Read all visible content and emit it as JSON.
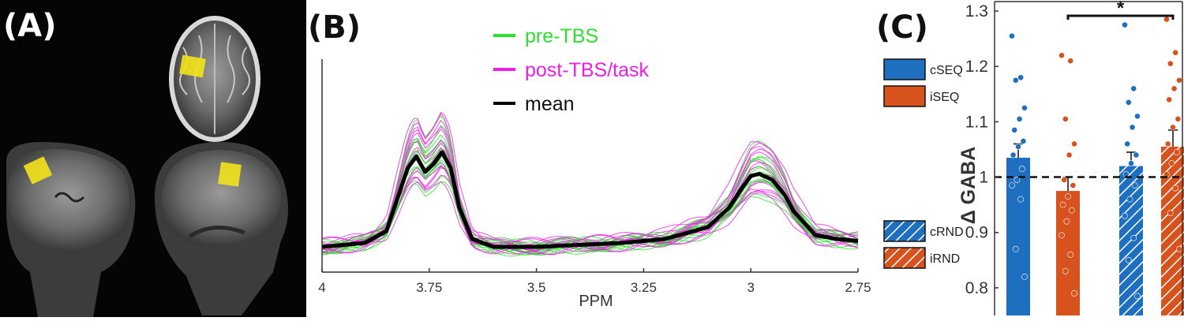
{
  "panels": {
    "a_label": "(A)",
    "b_label": "(B)",
    "c_label": "(C)"
  },
  "colors": {
    "pre": "#2ee02e",
    "post": "#ee1ee6",
    "mean": "#000000",
    "blue": "#1f6fc0",
    "orange": "#d8521d",
    "roi": "#f2e21a"
  },
  "chart_data": [
    {
      "type": "line",
      "xlabel": "PPM",
      "ylabel": "",
      "x_reversed": true,
      "xlim": [
        2.75,
        4
      ],
      "xticks": [
        "4",
        "3.75",
        "3.5",
        "3.25",
        "3",
        "2.75"
      ],
      "xtick_values": [
        4,
        3.75,
        3.5,
        3.25,
        3,
        2.75
      ],
      "legend_position": "top-center",
      "series": [
        {
          "name": "pre-TBS",
          "color": "#2ee02e"
        },
        {
          "name": "post-TBS/task",
          "color": "#ee1ee6"
        },
        {
          "name": "mean",
          "color": "#000000",
          "x": [
            4.0,
            3.9,
            3.85,
            3.8,
            3.78,
            3.76,
            3.74,
            3.72,
            3.7,
            3.68,
            3.65,
            3.6,
            3.5,
            3.4,
            3.3,
            3.2,
            3.1,
            3.05,
            3.02,
            3.0,
            2.98,
            2.95,
            2.92,
            2.9,
            2.85,
            2.8,
            2.75
          ],
          "y": [
            0.0,
            0.02,
            0.08,
            0.4,
            0.46,
            0.38,
            0.42,
            0.48,
            0.4,
            0.2,
            0.04,
            0.0,
            0.0,
            0.01,
            0.02,
            0.04,
            0.1,
            0.2,
            0.3,
            0.36,
            0.37,
            0.34,
            0.26,
            0.18,
            0.06,
            0.04,
            0.03
          ]
        }
      ]
    },
    {
      "type": "bar",
      "xlabel": "",
      "ylabel": "Δ GABA",
      "ylim": [
        0.75,
        1.32
      ],
      "yticks": [
        "0.8",
        "0.9",
        "1",
        "1.1",
        "1.2",
        "1.3"
      ],
      "ytick_values": [
        0.8,
        0.9,
        1.0,
        1.1,
        1.2,
        1.3
      ],
      "reference_line": 1.0,
      "significance": {
        "between": [
          "iSEQ",
          "iRND"
        ],
        "label": "*"
      },
      "legend": [
        {
          "label": "cSEQ",
          "color": "#1f6fc0",
          "hatched": false
        },
        {
          "label": "iSEQ",
          "color": "#d8521d",
          "hatched": false
        },
        {
          "label": "cRND",
          "color": "#1f6fc0",
          "hatched": true
        },
        {
          "label": "iRND",
          "color": "#d8521d",
          "hatched": true
        }
      ],
      "categories": [
        "cSEQ",
        "iSEQ",
        "cRND",
        "iRND"
      ],
      "values": [
        1.035,
        0.975,
        1.02,
        1.055
      ],
      "errors": [
        0.025,
        0.025,
        0.025,
        0.03
      ],
      "points": [
        [
          1.255,
          1.18,
          1.175,
          1.125,
          1.105,
          1.085,
          1.065,
          1.055,
          1.04,
          1.015,
          0.995,
          0.985,
          0.96,
          0.87,
          0.82
        ],
        [
          1.22,
          1.21,
          1.105,
          1.06,
          1.04,
          0.995,
          0.985,
          0.965,
          0.95,
          0.94,
          0.92,
          0.895,
          0.86,
          0.83,
          0.79
        ],
        [
          1.275,
          1.16,
          1.135,
          1.11,
          1.09,
          1.06,
          1.04,
          1.025,
          1.005,
          0.985,
          0.96,
          0.93,
          0.89,
          0.85,
          0.785
        ],
        [
          1.285,
          1.225,
          1.205,
          1.175,
          1.16,
          1.14,
          1.105,
          1.09,
          1.06,
          1.045,
          1.025,
          1.005,
          0.98,
          0.935,
          0.87
        ]
      ]
    }
  ]
}
